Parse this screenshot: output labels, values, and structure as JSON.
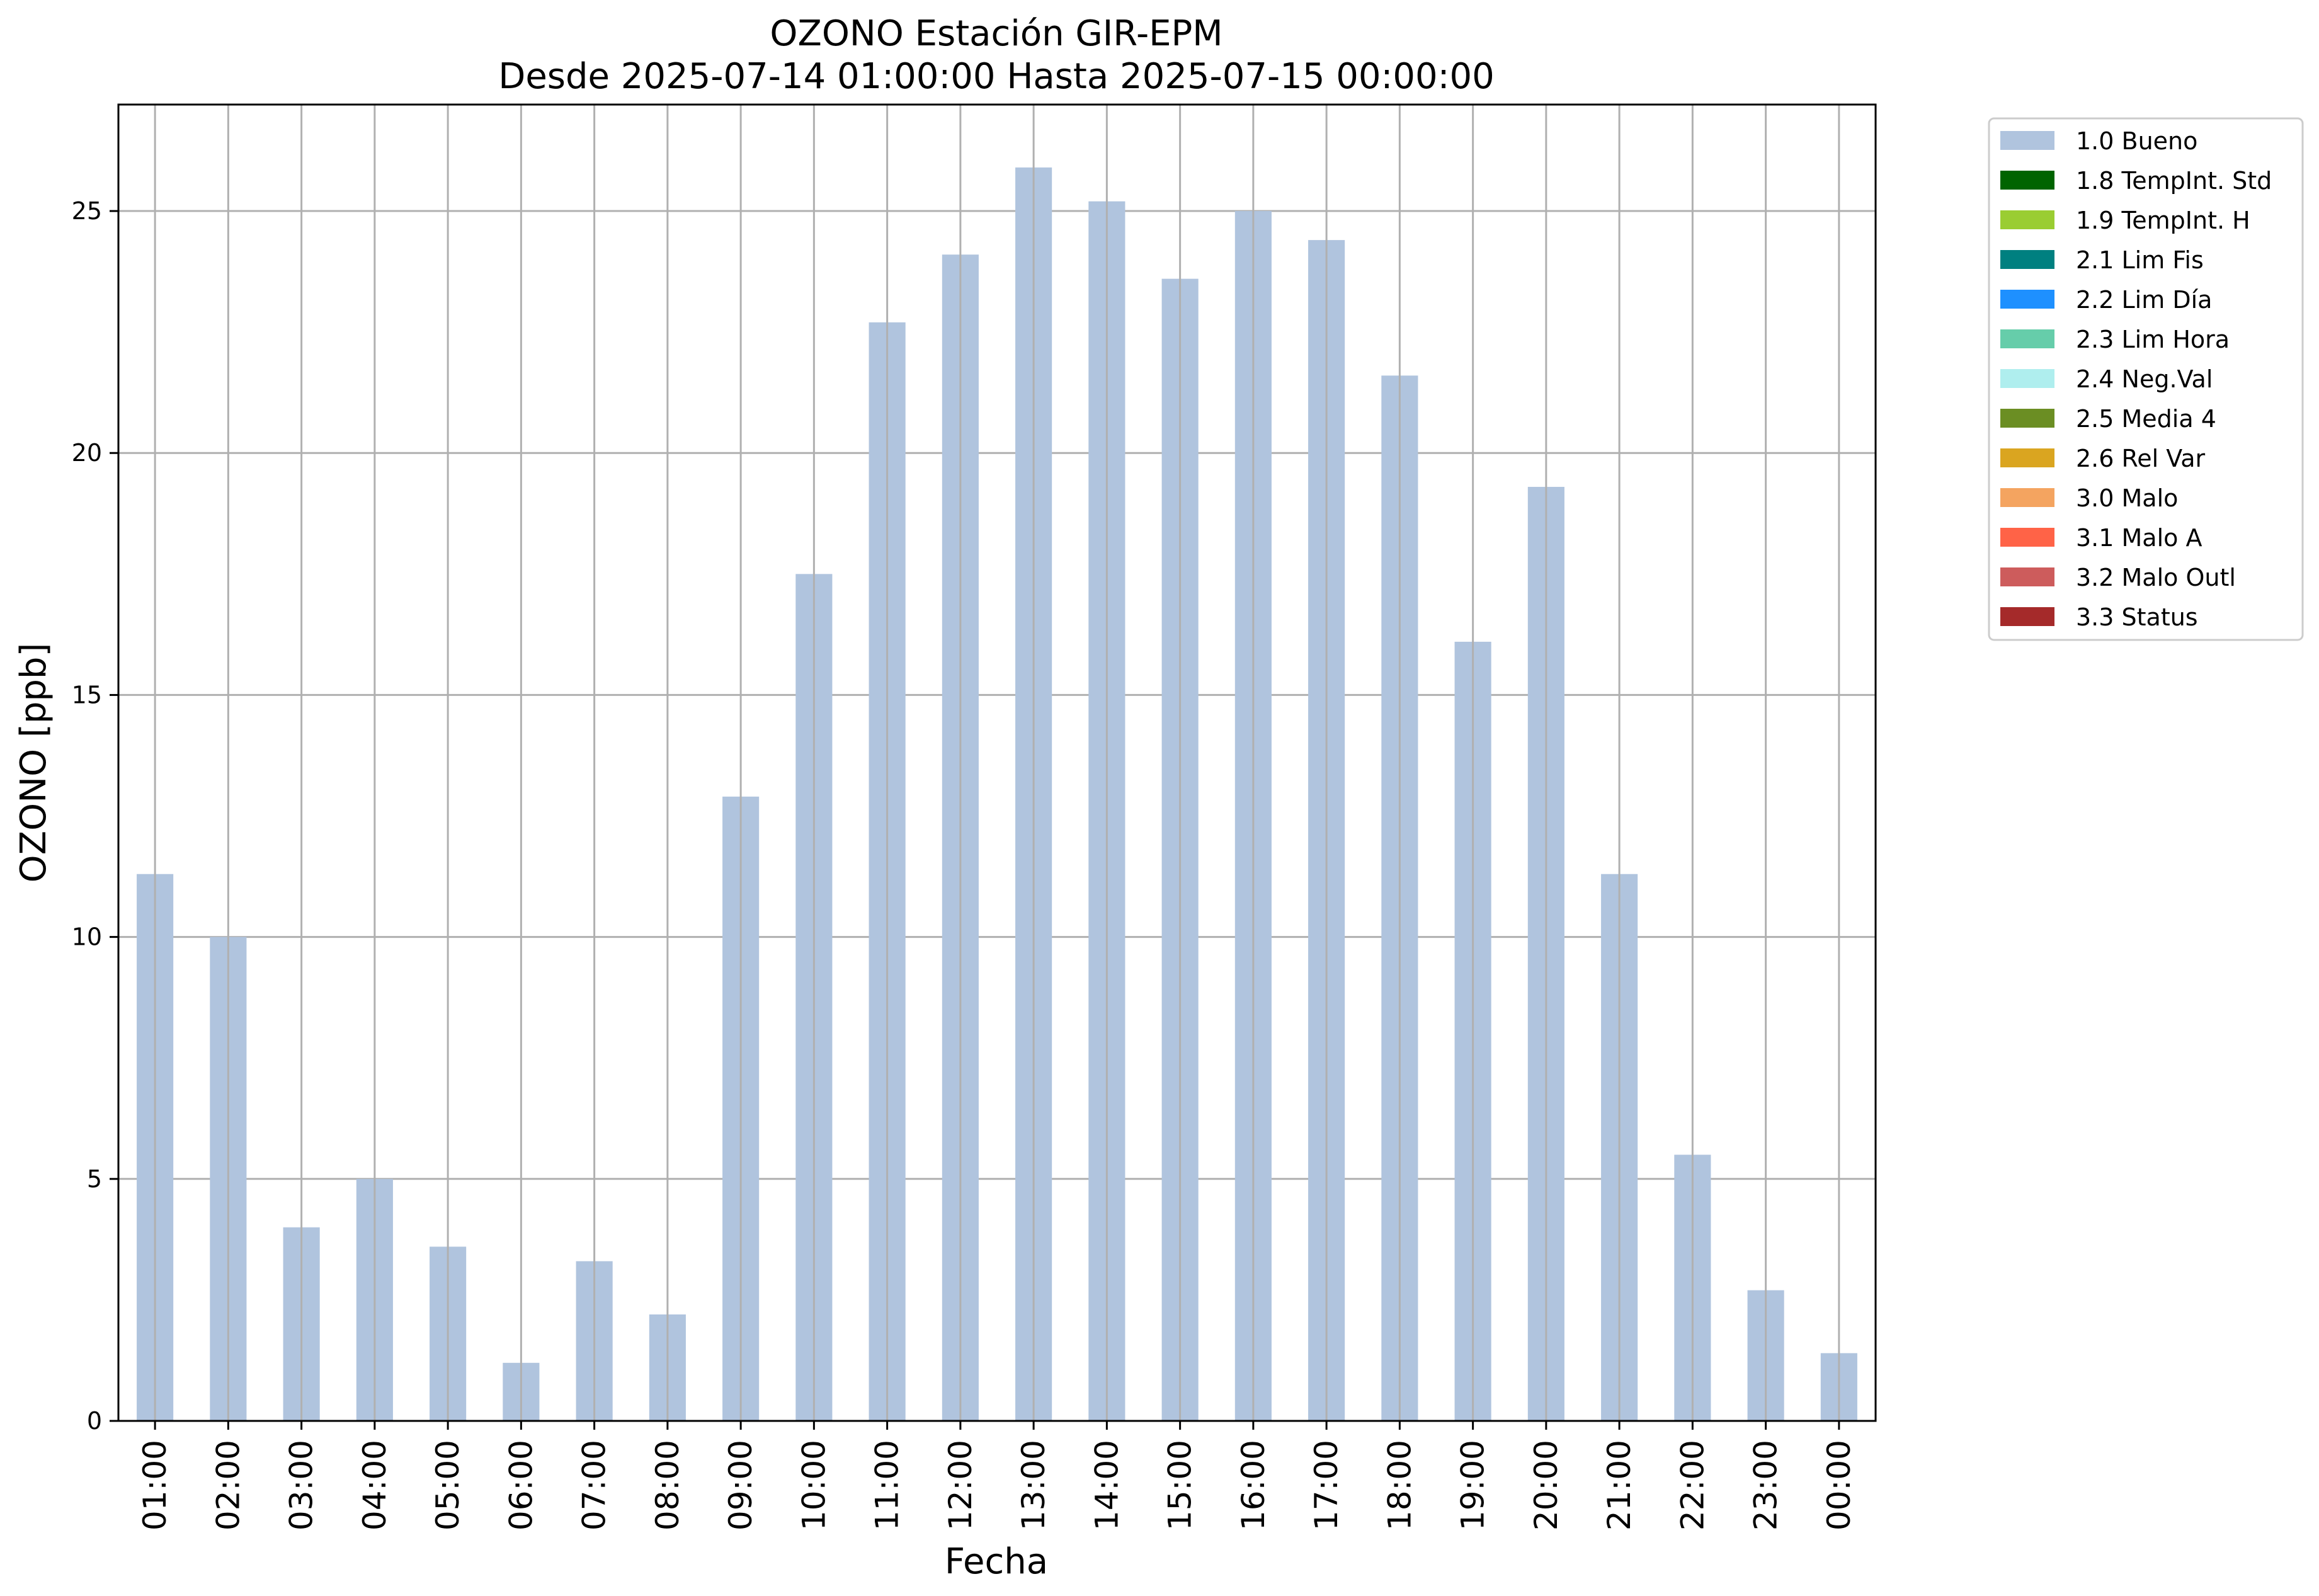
{
  "chart_data": {
    "type": "bar",
    "title": "OZONO Estación GIR-EPM",
    "subtitle": "Desde 2025-07-14 01:00:00 Hasta 2025-07-15 00:00:00",
    "xlabel": "Fecha",
    "ylabel": "OZONO [ppb]",
    "ylim": [
      0,
      27.2
    ],
    "yticks": [
      0,
      5,
      10,
      15,
      20,
      25
    ],
    "grid": true,
    "legend_position": "outside-top-right",
    "categories": [
      "01:00",
      "02:00",
      "03:00",
      "04:00",
      "05:00",
      "06:00",
      "07:00",
      "08:00",
      "09:00",
      "10:00",
      "11:00",
      "12:00",
      "13:00",
      "14:00",
      "15:00",
      "16:00",
      "17:00",
      "18:00",
      "19:00",
      "20:00",
      "21:00",
      "22:00",
      "23:00",
      "00:00"
    ],
    "series": [
      {
        "name": "1.0 Bueno",
        "color": "#b0c4de",
        "values": [
          11.3,
          10.0,
          4.0,
          5.0,
          3.6,
          1.2,
          3.3,
          2.2,
          12.9,
          17.5,
          22.7,
          24.1,
          25.9,
          25.2,
          23.6,
          25.0,
          24.4,
          21.6,
          16.1,
          19.3,
          11.3,
          5.5,
          2.7,
          1.4
        ]
      }
    ],
    "legend": [
      {
        "label": "1.0 Bueno",
        "color": "#b0c4de"
      },
      {
        "label": "1.8 TempInt. Std",
        "color": "#006400"
      },
      {
        "label": "1.9 TempInt. H",
        "color": "#9acd32"
      },
      {
        "label": "2.1 Lim Fis",
        "color": "#008080"
      },
      {
        "label": "2.2 Lim Día",
        "color": "#1e90ff"
      },
      {
        "label": "2.3 Lim Hora",
        "color": "#66cdaa"
      },
      {
        "label": "2.4 Neg.Val",
        "color": "#afeeee"
      },
      {
        "label": "2.5 Media 4",
        "color": "#6b8e23"
      },
      {
        "label": "2.6 Rel Var",
        "color": "#daa520"
      },
      {
        "label": "3.0 Malo",
        "color": "#f4a460"
      },
      {
        "label": "3.1 Malo A",
        "color": "#ff6347"
      },
      {
        "label": "3.2 Malo Outl",
        "color": "#cd5c5c"
      },
      {
        "label": "3.3 Status",
        "color": "#a52a2a"
      }
    ]
  }
}
